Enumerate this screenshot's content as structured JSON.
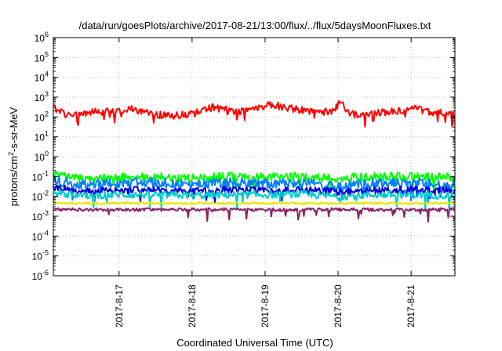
{
  "chart_data": {
    "type": "line",
    "title": "/data/run/goesPlots/archive/2017-08-21/13:00/flux/../flux/5daysMoonFluxes.txt",
    "xlabel": "Coordinated Universal Time (UTC)",
    "ylabel": {
      "prefix": "protons/cm",
      "sup": "2",
      "suffix": "-s-sr-MeV"
    },
    "yscale": "log",
    "ylim": [
      1e-06,
      1000000.0
    ],
    "y_tick_base": "10",
    "y_tick_exponents": [
      "-6",
      "-5",
      "-4",
      "-3",
      "-2",
      "-1",
      "0",
      "1",
      "2",
      "3",
      "4",
      "5",
      "6"
    ],
    "xlim": [
      16.1,
      21.6
    ],
    "x_ticks": [
      {
        "x": 17,
        "label": "2017-8-17"
      },
      {
        "x": 18,
        "label": "2017-8-18"
      },
      {
        "x": 19,
        "label": "2017-8-19"
      },
      {
        "x": 20,
        "label": "2017-8-20"
      },
      {
        "x": 21,
        "label": "2017-8-21"
      }
    ],
    "grid": true,
    "series": [
      {
        "color": "#ff0000",
        "base": 180,
        "noise": 0.18,
        "spike_down": 0.35,
        "anchors": [
          [
            16.1,
            300
          ],
          [
            16.3,
            120
          ],
          [
            16.6,
            170
          ],
          [
            16.9,
            200
          ],
          [
            17.2,
            260
          ],
          [
            17.4,
            150
          ],
          [
            17.7,
            110
          ],
          [
            18.0,
            150
          ],
          [
            18.3,
            320
          ],
          [
            18.6,
            180
          ],
          [
            18.9,
            320
          ],
          [
            19.1,
            420
          ],
          [
            19.3,
            300
          ],
          [
            19.6,
            200
          ],
          [
            19.9,
            180
          ],
          [
            20.05,
            600
          ],
          [
            20.15,
            150
          ],
          [
            20.3,
            120
          ],
          [
            20.6,
            170
          ],
          [
            20.9,
            220
          ],
          [
            21.0,
            300
          ],
          [
            21.2,
            200
          ],
          [
            21.4,
            160
          ],
          [
            21.6,
            120
          ]
        ]
      },
      {
        "color": "#00ff00",
        "base": 0.09,
        "noise": 0.22,
        "spike_down": 0.55,
        "anchors": [
          [
            16.1,
            0.12
          ],
          [
            16.5,
            0.08
          ],
          [
            17.0,
            0.09
          ],
          [
            17.5,
            0.1
          ],
          [
            18.0,
            0.08
          ],
          [
            18.5,
            0.1
          ],
          [
            19.0,
            0.09
          ],
          [
            19.5,
            0.1
          ],
          [
            20.0,
            0.08
          ],
          [
            20.5,
            0.1
          ],
          [
            21.0,
            0.1
          ],
          [
            21.6,
            0.09
          ]
        ]
      },
      {
        "color": "#0080ff",
        "base": 0.04,
        "noise": 0.25,
        "spike_down": 0.6,
        "anchors": [
          [
            16.1,
            0.06
          ],
          [
            16.5,
            0.04
          ],
          [
            17.0,
            0.045
          ],
          [
            17.5,
            0.05
          ],
          [
            18.0,
            0.04
          ],
          [
            18.5,
            0.05
          ],
          [
            19.0,
            0.045
          ],
          [
            19.5,
            0.05
          ],
          [
            20.0,
            0.035
          ],
          [
            20.5,
            0.045
          ],
          [
            21.0,
            0.05
          ],
          [
            21.6,
            0.04
          ]
        ]
      },
      {
        "color": "#0000dd",
        "base": 0.02,
        "noise": 0.18,
        "spike_down": 0.35,
        "anchors": [
          [
            16.1,
            0.03
          ],
          [
            16.5,
            0.018
          ],
          [
            17.0,
            0.02
          ],
          [
            17.5,
            0.022
          ],
          [
            18.0,
            0.018
          ],
          [
            18.5,
            0.022
          ],
          [
            19.0,
            0.02
          ],
          [
            19.5,
            0.022
          ],
          [
            20.0,
            0.017
          ],
          [
            20.5,
            0.02
          ],
          [
            21.0,
            0.022
          ],
          [
            21.6,
            0.02
          ]
        ]
      },
      {
        "color": "#00cccc",
        "base": 0.012,
        "noise": 0.18,
        "spike_down": 0.5,
        "anchors": [
          [
            16.1,
            0.015
          ],
          [
            16.5,
            0.011
          ],
          [
            17.0,
            0.012
          ],
          [
            17.5,
            0.012
          ],
          [
            18.0,
            0.011
          ],
          [
            18.5,
            0.012
          ],
          [
            19.0,
            0.012
          ],
          [
            19.5,
            0.013
          ],
          [
            20.0,
            0.01
          ],
          [
            20.5,
            0.012
          ],
          [
            21.0,
            0.012
          ],
          [
            21.6,
            0.011
          ]
        ]
      },
      {
        "color": "#e6e600",
        "base": 0.0045,
        "noise": 0.05,
        "spike_down": 0.0,
        "anchors": [
          [
            16.1,
            0.0045
          ],
          [
            21.6,
            0.0045
          ]
        ]
      },
      {
        "color": "#882266",
        "base": 0.0022,
        "noise": 0.08,
        "spike_down": 0.4,
        "anchors": [
          [
            16.1,
            0.0022
          ],
          [
            17.0,
            0.0021
          ],
          [
            18.0,
            0.0022
          ],
          [
            19.0,
            0.0021
          ],
          [
            20.0,
            0.0022
          ],
          [
            21.0,
            0.0021
          ],
          [
            21.6,
            0.0022
          ]
        ]
      }
    ]
  }
}
